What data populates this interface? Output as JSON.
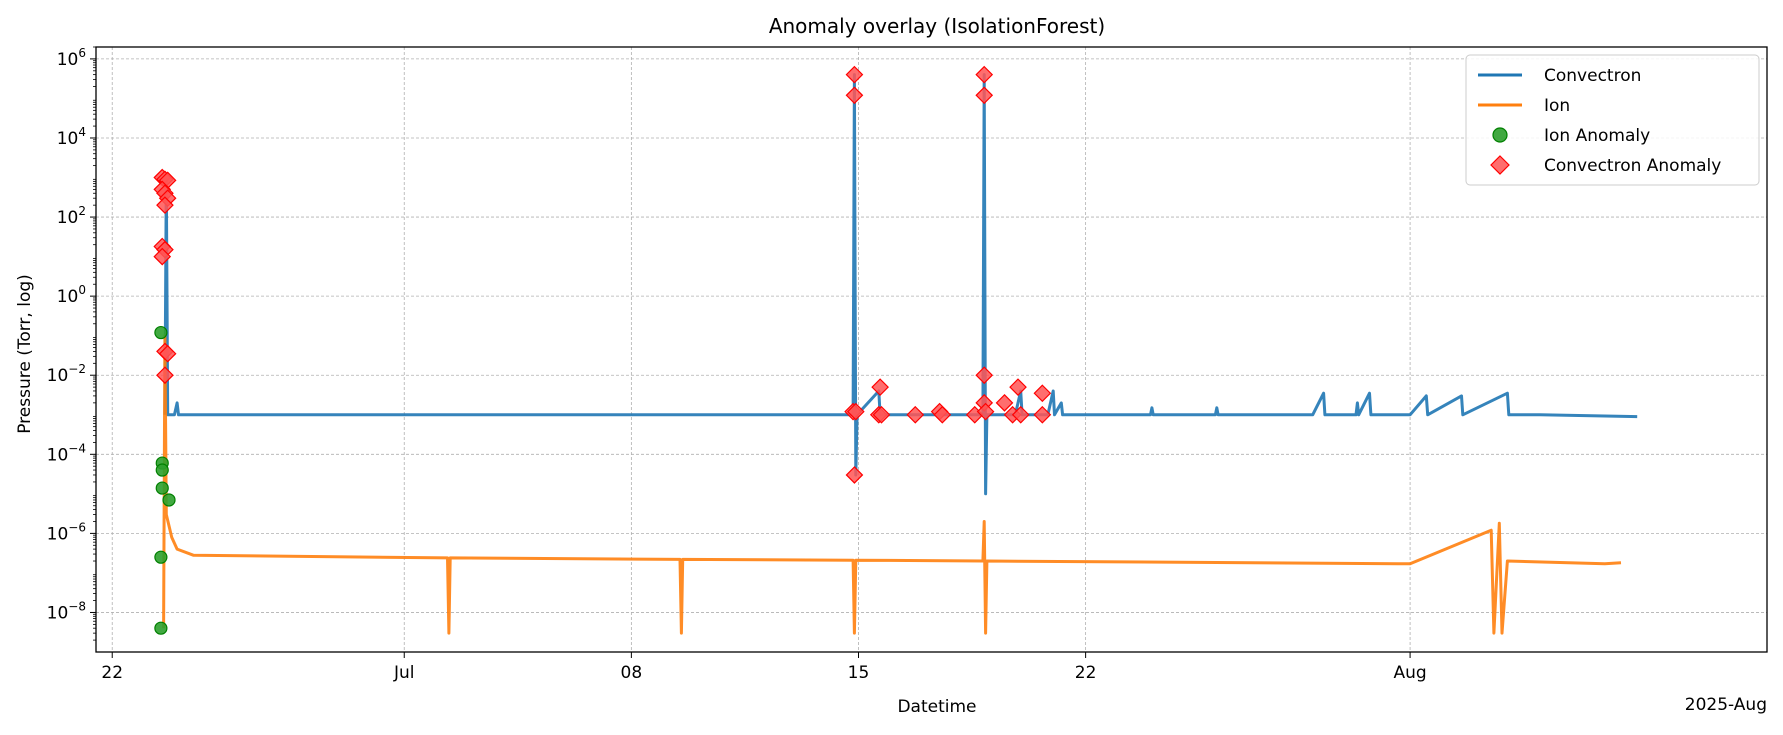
{
  "chart_data": {
    "type": "line",
    "title": "Anomaly overlay (IsolationForest)",
    "xlabel": "Datetime",
    "ylabel": "Pressure (Torr, log)",
    "x_offset_label": "2025-Aug",
    "yscale": "log",
    "ylim": [
      1e-09,
      2000000.0
    ],
    "xlim": [
      "2025-06-21T12:00",
      "2025-08-12T00:00"
    ],
    "grid": true,
    "legend_position": "top-right",
    "x_ticks": [
      {
        "date": "2025-06-22",
        "label": "22"
      },
      {
        "date": "2025-07-01",
        "label": "Jul"
      },
      {
        "date": "2025-07-08",
        "label": "08"
      },
      {
        "date": "2025-07-15",
        "label": "15"
      },
      {
        "date": "2025-07-22",
        "label": "22"
      },
      {
        "date": "2025-08-01",
        "label": "Aug"
      }
    ],
    "y_ticks": [
      {
        "exp": -8,
        "value": 1e-08
      },
      {
        "exp": -6,
        "value": 1e-06
      },
      {
        "exp": -4,
        "value": 0.0001
      },
      {
        "exp": -2,
        "value": 0.01
      },
      {
        "exp": 0,
        "value": 1
      },
      {
        "exp": 2,
        "value": 100
      },
      {
        "exp": 4,
        "value": 10000
      },
      {
        "exp": 6,
        "value": 1000000
      }
    ],
    "series": [
      {
        "name": "Convectron",
        "kind": "line",
        "color": "#1f77b4",
        "points": [
          [
            "2025-06-23T15:00",
            0.001
          ],
          [
            "2025-06-23T16:00",
            1000
          ],
          [
            "2025-06-23T17:00",
            0.001
          ],
          [
            "2025-06-23T22:00",
            0.001
          ],
          [
            "2025-06-24T00:00",
            0.002
          ],
          [
            "2025-06-24T01:00",
            0.001
          ],
          [
            "2025-07-03T00:00",
            0.001
          ],
          [
            "2025-07-10T00:00",
            0.001
          ],
          [
            "2025-07-14T00:00",
            0.001
          ],
          [
            "2025-07-14T20:00",
            0.001
          ],
          [
            "2025-07-14T21:00",
            400000
          ],
          [
            "2025-07-14T22:00",
            3e-05
          ],
          [
            "2025-07-14T23:00",
            0.001
          ],
          [
            "2025-07-15T15:00",
            0.004
          ],
          [
            "2025-07-15T16:00",
            0.001
          ],
          [
            "2025-07-18T20:00",
            0.001
          ],
          [
            "2025-07-18T21:00",
            400000
          ],
          [
            "2025-07-18T22:00",
            1e-05
          ],
          [
            "2025-07-18T23:00",
            0.001
          ],
          [
            "2025-07-19T20:00",
            0.001
          ],
          [
            "2025-07-20T00:00",
            0.004
          ],
          [
            "2025-07-20T01:00",
            0.001
          ],
          [
            "2025-07-20T20:00",
            0.001
          ],
          [
            "2025-07-21T00:00",
            0.004
          ],
          [
            "2025-07-21T01:00",
            0.001
          ],
          [
            "2025-07-21T06:00",
            0.002
          ],
          [
            "2025-07-21T07:00",
            0.001
          ],
          [
            "2025-07-22T00:00",
            0.001
          ],
          [
            "2025-07-24T00:00",
            0.001
          ],
          [
            "2025-07-24T01:00",
            0.0015
          ],
          [
            "2025-07-24T02:00",
            0.001
          ],
          [
            "2025-07-26T00:00",
            0.001
          ],
          [
            "2025-07-26T01:00",
            0.0015
          ],
          [
            "2025-07-26T02:00",
            0.001
          ],
          [
            "2025-07-29T00:00",
            0.001
          ],
          [
            "2025-07-29T08:00",
            0.0035
          ],
          [
            "2025-07-29T09:00",
            0.001
          ],
          [
            "2025-07-30T08:00",
            0.001
          ],
          [
            "2025-07-30T09:00",
            0.002
          ],
          [
            "2025-07-30T10:00",
            0.001
          ],
          [
            "2025-07-30T18:00",
            0.0035
          ],
          [
            "2025-07-30T19:00",
            0.001
          ],
          [
            "2025-08-01T00:00",
            0.001
          ],
          [
            "2025-08-01T12:00",
            0.003
          ],
          [
            "2025-08-01T13:00",
            0.001
          ],
          [
            "2025-08-02T14:00",
            0.003
          ],
          [
            "2025-08-02T15:00",
            0.001
          ],
          [
            "2025-08-04T00:00",
            0.0035
          ],
          [
            "2025-08-04T01:00",
            0.001
          ],
          [
            "2025-08-05T00:00",
            0.001
          ],
          [
            "2025-08-08T00:00",
            0.0009
          ]
        ]
      },
      {
        "name": "Ion",
        "kind": "line",
        "color": "#ff7f0e",
        "points": [
          [
            "2025-06-23T14:00",
            4e-09
          ],
          [
            "2025-06-23T15:00",
            0.1
          ],
          [
            "2025-06-23T16:00",
            3e-06
          ],
          [
            "2025-06-23T20:00",
            8e-07
          ],
          [
            "2025-06-24T00:00",
            4e-07
          ],
          [
            "2025-06-24T12:00",
            2.8e-07
          ],
          [
            "2025-07-02T08:00",
            2.4e-07
          ],
          [
            "2025-07-02T09:00",
            3e-09
          ],
          [
            "2025-07-02T10:00",
            2.4e-07
          ],
          [
            "2025-07-09T12:00",
            2.2e-07
          ],
          [
            "2025-07-09T13:00",
            3e-09
          ],
          [
            "2025-07-09T14:00",
            2.2e-07
          ],
          [
            "2025-07-14T20:00",
            2.1e-07
          ],
          [
            "2025-07-14T21:00",
            3e-09
          ],
          [
            "2025-07-14T22:00",
            2.1e-07
          ],
          [
            "2025-07-18T20:00",
            2e-07
          ],
          [
            "2025-07-18T21:00",
            2e-06
          ],
          [
            "2025-07-18T22:00",
            3e-09
          ],
          [
            "2025-07-18T23:00",
            2e-07
          ],
          [
            "2025-08-01T00:00",
            1.7e-07
          ],
          [
            "2025-08-03T12:00",
            1.2e-06
          ],
          [
            "2025-08-03T14:00",
            3e-09
          ],
          [
            "2025-08-03T18:00",
            1.8e-06
          ],
          [
            "2025-08-03T20:00",
            3e-09
          ],
          [
            "2025-08-04T00:00",
            2e-07
          ],
          [
            "2025-08-07T00:00",
            1.7e-07
          ],
          [
            "2025-08-07T12:00",
            1.8e-07
          ]
        ]
      },
      {
        "name": "Ion Anomaly",
        "kind": "scatter",
        "marker": "circle",
        "color": "#2ca02c",
        "edge_color": "#008000",
        "points": [
          [
            "2025-06-23T12:00",
            0.12
          ],
          [
            "2025-06-23T13:00",
            6e-05
          ],
          [
            "2025-06-23T13:00",
            4e-05
          ],
          [
            "2025-06-23T13:00",
            1.4e-05
          ],
          [
            "2025-06-23T12:00",
            2.5e-07
          ],
          [
            "2025-06-23T12:00",
            4e-09
          ],
          [
            "2025-06-23T18:00",
            7e-06
          ]
        ]
      },
      {
        "name": "Convectron Anomaly",
        "kind": "scatter",
        "marker": "diamond",
        "color": "#ff5555",
        "edge_color": "#ff0000",
        "points": [
          [
            "2025-06-23T13:00",
            1000
          ],
          [
            "2025-06-23T15:00",
            900
          ],
          [
            "2025-06-23T17:00",
            850
          ],
          [
            "2025-06-23T13:00",
            500
          ],
          [
            "2025-06-23T15:00",
            400
          ],
          [
            "2025-06-23T17:00",
            300
          ],
          [
            "2025-06-23T15:00",
            200
          ],
          [
            "2025-06-23T13:00",
            18
          ],
          [
            "2025-06-23T15:00",
            15
          ],
          [
            "2025-06-23T13:00",
            10
          ],
          [
            "2025-06-23T15:00",
            0.04
          ],
          [
            "2025-06-23T17:00",
            0.035
          ],
          [
            "2025-06-23T15:00",
            0.01
          ],
          [
            "2025-07-14T21:00",
            400000
          ],
          [
            "2025-07-14T21:00",
            120000
          ],
          [
            "2025-07-14T21:00",
            3e-05
          ],
          [
            "2025-07-14T20:00",
            0.0012
          ],
          [
            "2025-07-14T22:00",
            0.0012
          ],
          [
            "2025-07-15T16:00",
            0.005
          ],
          [
            "2025-07-15T15:00",
            0.001
          ],
          [
            "2025-07-15T17:00",
            0.001
          ],
          [
            "2025-07-16T18:00",
            0.001
          ],
          [
            "2025-07-17T12:00",
            0.0012
          ],
          [
            "2025-07-17T14:00",
            0.001
          ],
          [
            "2025-07-18T14:00",
            0.001
          ],
          [
            "2025-07-18T21:00",
            400000
          ],
          [
            "2025-07-18T21:00",
            120000
          ],
          [
            "2025-07-18T21:00",
            0.01
          ],
          [
            "2025-07-18T21:00",
            0.002
          ],
          [
            "2025-07-18T22:00",
            0.0012
          ],
          [
            "2025-07-19T12:00",
            0.002
          ],
          [
            "2025-07-19T18:00",
            0.001
          ],
          [
            "2025-07-19T22:00",
            0.005
          ],
          [
            "2025-07-20T00:00",
            0.001
          ],
          [
            "2025-07-20T16:00",
            0.0035
          ],
          [
            "2025-07-20T16:00",
            0.001
          ]
        ]
      }
    ]
  }
}
